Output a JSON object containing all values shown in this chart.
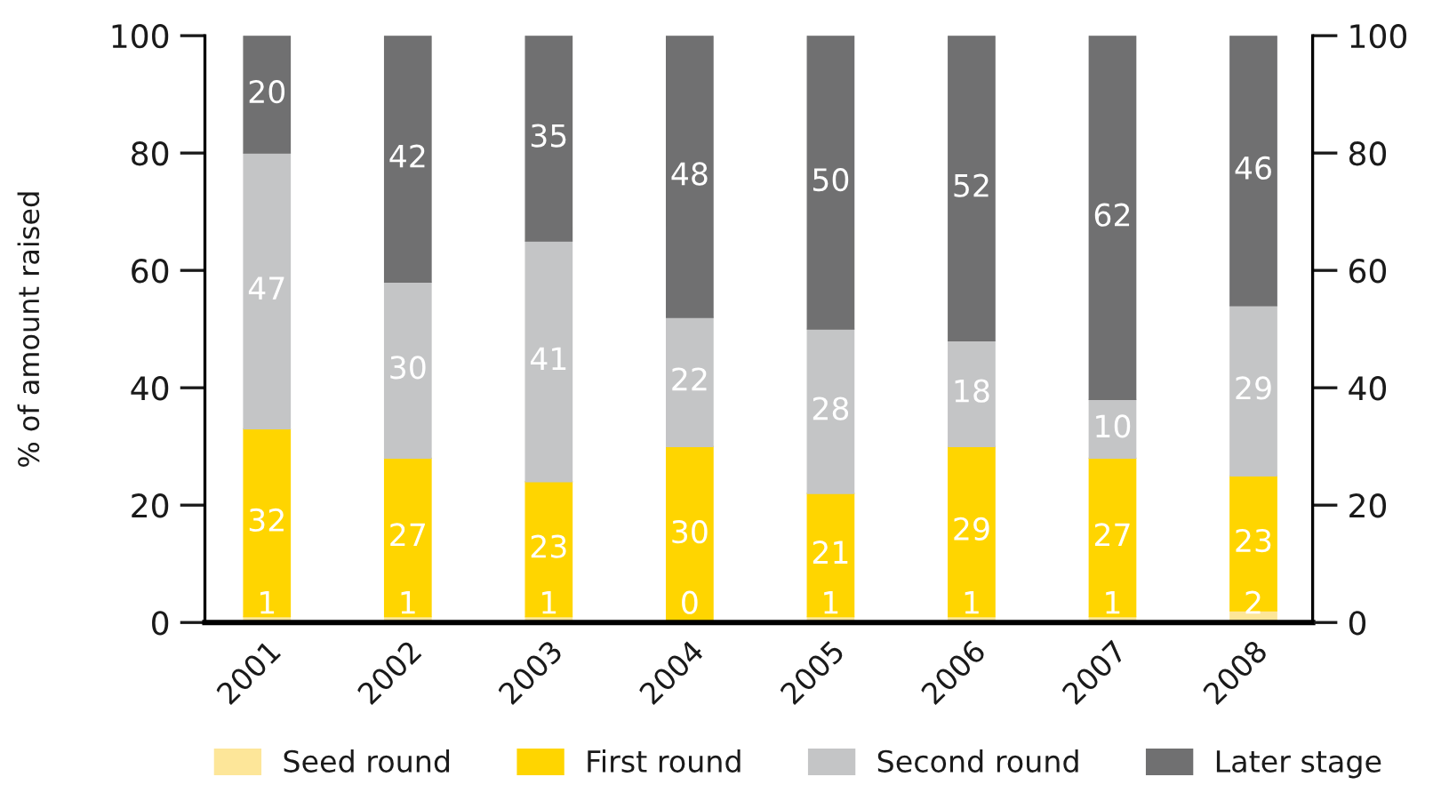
{
  "chart_data": {
    "type": "bar",
    "stacked": true,
    "categories": [
      "2001",
      "2002",
      "2003",
      "2004",
      "2005",
      "2006",
      "2007",
      "2008"
    ],
    "series": [
      {
        "name": "Seed round",
        "color": "#fde699",
        "values": [
          1,
          1,
          1,
          0,
          1,
          1,
          1,
          2
        ]
      },
      {
        "name": "First round",
        "color": "#ffd500",
        "values": [
          32,
          27,
          23,
          30,
          21,
          29,
          27,
          23
        ]
      },
      {
        "name": "Second round",
        "color": "#c4c5c6",
        "values": [
          47,
          30,
          41,
          22,
          28,
          18,
          10,
          29
        ]
      },
      {
        "name": "Later stage",
        "color": "#707071",
        "values": [
          20,
          42,
          35,
          48,
          50,
          52,
          62,
          46
        ]
      }
    ],
    "ylabel": "% of amount raised",
    "ylim": [
      0,
      100
    ],
    "yticks": [
      0,
      20,
      40,
      60,
      80,
      100
    ],
    "y2lim": [
      0,
      100
    ],
    "y2ticks": [
      0,
      20,
      40,
      60,
      80,
      100
    ],
    "data_labels": true,
    "legend": "bottom"
  }
}
